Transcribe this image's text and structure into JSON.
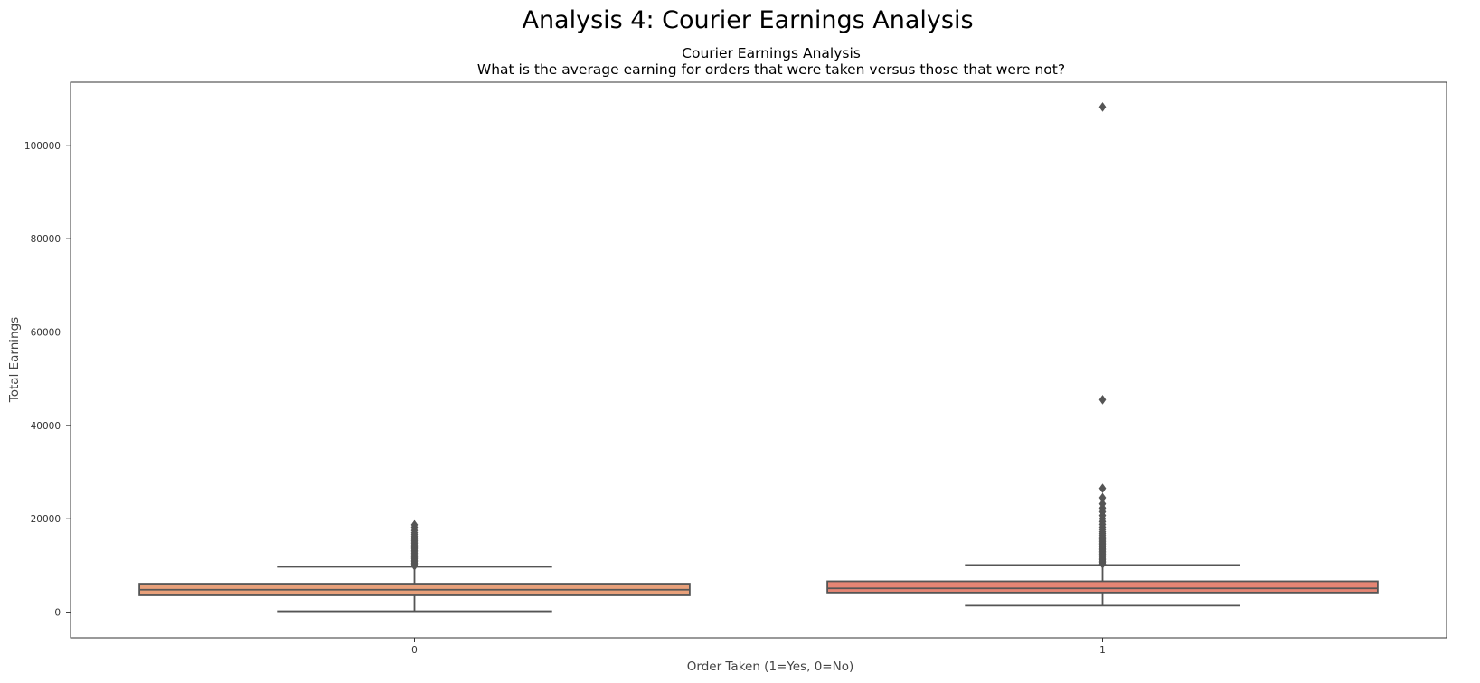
{
  "figure": {
    "suptitle": "Analysis 4: Courier Earnings Analysis"
  },
  "chart_data": {
    "type": "box",
    "title": "Courier Earnings Analysis",
    "subtitle": "What is the average earning for orders that were taken versus those that were not?",
    "xlabel": "Order Taken (1=Yes, 0=No)",
    "ylabel": "Total Earnings",
    "categories": [
      "0",
      "1"
    ],
    "ylim": [
      -5500,
      113500
    ],
    "yticks": [
      0,
      20000,
      40000,
      60000,
      80000,
      100000
    ],
    "ytick_labels": [
      "0",
      "20000",
      "40000",
      "60000",
      "80000",
      "100000"
    ],
    "grid": false,
    "legend": "none",
    "boxes": [
      {
        "category": "0",
        "whisker_low": 200,
        "q1": 3600,
        "median": 4800,
        "q3": 6100,
        "whisker_high": 9700,
        "color": "#e8a07a",
        "outliers": [
          9900,
          10200,
          10500,
          10800,
          11100,
          11400,
          11700,
          12000,
          12300,
          12600,
          12900,
          13200,
          13500,
          13800,
          14100,
          14400,
          14700,
          15000,
          15300,
          15600,
          15900,
          16200,
          16600,
          17000,
          17500,
          18200,
          18700
        ]
      },
      {
        "category": "1",
        "whisker_low": 1400,
        "q1": 4200,
        "median": 5100,
        "q3": 6600,
        "whisker_high": 10100,
        "color": "#e58574",
        "outliers": [
          10300,
          10600,
          10900,
          11200,
          11500,
          11800,
          12100,
          12400,
          12700,
          13000,
          13300,
          13600,
          13900,
          14200,
          14500,
          14800,
          15100,
          15400,
          15700,
          16000,
          16400,
          16800,
          17200,
          17700,
          18200,
          18800,
          19400,
          20000,
          20700,
          21500,
          22300,
          23200,
          24500,
          26500,
          45500,
          108200
        ]
      }
    ],
    "colors": {
      "line": "#555555",
      "frame": "#333333"
    }
  }
}
